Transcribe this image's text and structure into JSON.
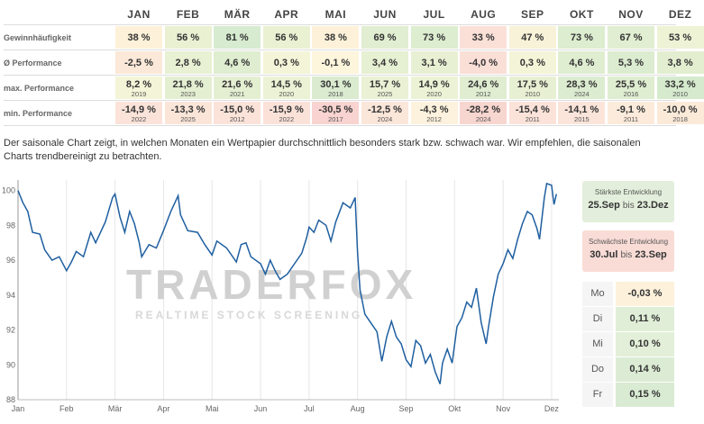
{
  "months": [
    "JAN",
    "FEB",
    "MÄR",
    "APR",
    "MAI",
    "JUN",
    "JUL",
    "AUG",
    "SEP",
    "OKT",
    "NOV",
    "DEZ"
  ],
  "rows": [
    {
      "label": "Gewinnhäufigkeit",
      "values": [
        "38 %",
        "56 %",
        "81 %",
        "56 %",
        "38 %",
        "69 %",
        "73 %",
        "33 %",
        "47 %",
        "73 %",
        "67 %",
        "53 %"
      ],
      "colors": [
        "#fdf2d9",
        "#eaf1d3",
        "#d6ebcf",
        "#eaf1d3",
        "#fdf2d9",
        "#e1eed1",
        "#ddedd0",
        "#fbe0d8",
        "#f7f2d8",
        "#ddedd0",
        "#e2eed1",
        "#eef3d6"
      ]
    },
    {
      "label": "Ø Performance",
      "values": [
        "-2,5 %",
        "2,8 %",
        "4,6 %",
        "0,3 %",
        "-0,1 %",
        "3,4 %",
        "3,1 %",
        "-4,0 %",
        "0,3 %",
        "4,6 %",
        "5,3 %",
        "3,8 %"
      ],
      "colors": [
        "#fbe8d8",
        "#e8f1d3",
        "#dfedd0",
        "#f4f4d8",
        "#fdf5dc",
        "#e6f0d2",
        "#e7f0d3",
        "#fadfd7",
        "#f4f4d8",
        "#dfedd0",
        "#dcecd0",
        "#e3eed1"
      ]
    },
    {
      "label": "max. Performance",
      "values": [
        "8,2 %",
        "21,8 %",
        "21,6 %",
        "14,5 %",
        "30,1 %",
        "15,7 %",
        "14,9 %",
        "24,6 %",
        "17,5 %",
        "28,3 %",
        "25,5 %",
        "33,2 %"
      ],
      "years": [
        "2019",
        "2023",
        "2021",
        "2020",
        "2018",
        "2025",
        "2020",
        "2012",
        "2010",
        "2024",
        "2016",
        "2010"
      ],
      "colors": [
        "#f4f4d8",
        "#e4efd2",
        "#e4efd2",
        "#ecf2d5",
        "#daebcf",
        "#eaf1d4",
        "#ecf2d5",
        "#e0edd1",
        "#e8f0d3",
        "#dcecd0",
        "#dfedd0",
        "#d6eacd"
      ]
    },
    {
      "label": "min. Performance",
      "values": [
        "-14,9 %",
        "-13,3 %",
        "-15,0 %",
        "-15,9 %",
        "-30,5 %",
        "-12,5 %",
        "-4,3 %",
        "-28,2 %",
        "-15,4 %",
        "-14,1 %",
        "-9,1 %",
        "-10,0 %"
      ],
      "years": [
        "2022",
        "2025",
        "2012",
        "2022",
        "2017",
        "2024",
        "2012",
        "2024",
        "2011",
        "2015",
        "2011",
        "2018"
      ],
      "colors": [
        "#fbe3d9",
        "#fbe5d9",
        "#fbe3d9",
        "#fbe2d9",
        "#f8d3cf",
        "#fbe6da",
        "#fdf2dd",
        "#f8d6d0",
        "#fbe3d9",
        "#fbe4d9",
        "#fcebdb",
        "#fcead9"
      ]
    }
  ],
  "description": "Der saisonale Chart zeigt, in welchen Monaten ein Wertpapier durchschnittlich besonders stark bzw. schwach war. Wir empfehlen, die saisonalen Charts trendbereinigt zu betrachten.",
  "watermark": {
    "name": "TRADERFOX",
    "tagline": "REALTIME STOCK SCREENING"
  },
  "strongest": {
    "title": "Stärkste Entwicklung",
    "from": "25.Sep",
    "sep": "bis",
    "to": "23.Dez",
    "color": "#e3efdc"
  },
  "weakest": {
    "title": "Schwächste Entwicklung",
    "from": "30.Jul",
    "sep": "bis",
    "to": "23.Sep",
    "color": "#f9dcd6"
  },
  "weekdays": [
    {
      "day": "Mo",
      "value": "-0,03 %",
      "color": "#fdf1dc"
    },
    {
      "day": "Di",
      "value": "0,11 %",
      "color": "#e0eed7"
    },
    {
      "day": "Mi",
      "value": "0,10 %",
      "color": "#e3efd8"
    },
    {
      "day": "Do",
      "value": "0,14 %",
      "color": "#dcecd4"
    },
    {
      "day": "Fr",
      "value": "0,15 %",
      "color": "#d9ebd3"
    }
  ],
  "chart_data": {
    "type": "line",
    "ylim": [
      88,
      100.6
    ],
    "yticks": [
      88,
      90,
      92,
      94,
      96,
      98,
      100
    ],
    "xticks": [
      "Jan",
      "Feb",
      "Mär",
      "Apr",
      "Mai",
      "Jun",
      "Jul",
      "Aug",
      "Sep",
      "Okt",
      "Nov",
      "Dez"
    ],
    "line_color": "#1f5fa0",
    "grid": "vertical",
    "series": [
      {
        "points": [
          [
            0,
            100
          ],
          [
            0.1,
            99.3
          ],
          [
            0.2,
            98.8
          ],
          [
            0.3,
            97.6
          ],
          [
            0.45,
            97.5
          ],
          [
            0.55,
            96.6
          ],
          [
            0.7,
            96
          ],
          [
            0.85,
            96.2
          ],
          [
            1.0,
            95.4
          ],
          [
            1.1,
            95.9
          ],
          [
            1.2,
            96.5
          ],
          [
            1.35,
            96.2
          ],
          [
            1.5,
            97.6
          ],
          [
            1.6,
            97
          ],
          [
            1.8,
            98.2
          ],
          [
            1.95,
            99.6
          ],
          [
            2.0,
            99.8
          ],
          [
            2.1,
            98.5
          ],
          [
            2.2,
            97.6
          ],
          [
            2.3,
            98.8
          ],
          [
            2.4,
            98.1
          ],
          [
            2.5,
            97
          ],
          [
            2.55,
            96.2
          ],
          [
            2.7,
            96.9
          ],
          [
            2.85,
            96.7
          ],
          [
            3.0,
            97.7
          ],
          [
            3.15,
            98.8
          ],
          [
            3.3,
            99.7
          ],
          [
            3.35,
            98.6
          ],
          [
            3.5,
            97.7
          ],
          [
            3.7,
            97.6
          ],
          [
            3.85,
            96.9
          ],
          [
            4.0,
            96.3
          ],
          [
            4.1,
            97.1
          ],
          [
            4.3,
            96.7
          ],
          [
            4.5,
            95.9
          ],
          [
            4.6,
            96.9
          ],
          [
            4.7,
            97
          ],
          [
            4.8,
            96.2
          ],
          [
            5.0,
            95.8
          ],
          [
            5.1,
            95.2
          ],
          [
            5.2,
            96
          ],
          [
            5.3,
            95.4
          ],
          [
            5.4,
            94.9
          ],
          [
            5.55,
            95.2
          ],
          [
            5.7,
            95.8
          ],
          [
            5.85,
            96.4
          ],
          [
            5.95,
            97.3
          ],
          [
            6.0,
            97.9
          ],
          [
            6.1,
            97.6
          ],
          [
            6.2,
            98.3
          ],
          [
            6.35,
            98
          ],
          [
            6.45,
            97.1
          ],
          [
            6.55,
            98.2
          ],
          [
            6.7,
            99.3
          ],
          [
            6.85,
            99
          ],
          [
            6.95,
            99.6
          ],
          [
            7.0,
            96.4
          ],
          [
            7.05,
            94.3
          ],
          [
            7.15,
            92.9
          ],
          [
            7.3,
            92.3
          ],
          [
            7.4,
            91.9
          ],
          [
            7.5,
            90.2
          ],
          [
            7.6,
            91.6
          ],
          [
            7.7,
            92.5
          ],
          [
            7.8,
            91.6
          ],
          [
            7.9,
            91.2
          ],
          [
            8.0,
            90.3
          ],
          [
            8.1,
            89.9
          ],
          [
            8.2,
            91.4
          ],
          [
            8.3,
            91.1
          ],
          [
            8.4,
            90.1
          ],
          [
            8.5,
            90.6
          ],
          [
            8.6,
            89.6
          ],
          [
            8.7,
            88.9
          ],
          [
            8.75,
            90.1
          ],
          [
            8.85,
            90.9
          ],
          [
            8.95,
            90.1
          ],
          [
            9.05,
            92.2
          ],
          [
            9.15,
            92.7
          ],
          [
            9.25,
            93.6
          ],
          [
            9.35,
            93.3
          ],
          [
            9.45,
            94.4
          ],
          [
            9.55,
            92.4
          ],
          [
            9.65,
            91.2
          ],
          [
            9.7,
            92.2
          ],
          [
            9.8,
            93.9
          ],
          [
            9.9,
            95.2
          ],
          [
            10.0,
            95.8
          ],
          [
            10.1,
            96.6
          ],
          [
            10.2,
            96.1
          ],
          [
            10.3,
            97.2
          ],
          [
            10.4,
            98.1
          ],
          [
            10.5,
            98.8
          ],
          [
            10.6,
            98.6
          ],
          [
            10.7,
            97.8
          ],
          [
            10.75,
            97.2
          ],
          [
            10.85,
            99.6
          ],
          [
            10.9,
            100.4
          ],
          [
            11.0,
            100.3
          ],
          [
            11.05,
            99.2
          ],
          [
            11.1,
            99.8
          ]
        ]
      }
    ]
  }
}
